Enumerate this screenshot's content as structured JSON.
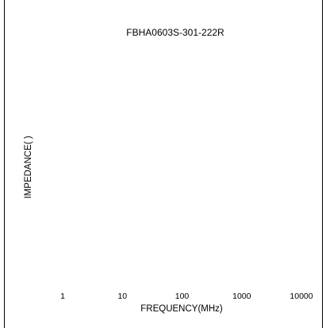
{
  "chart_data": {
    "type": "line",
    "title": "FBHA0603S-301-222R",
    "xlabel": "FREQUENCY(MHz)",
    "ylabel": "IMPEDANCE( )",
    "x_scale": "log",
    "x_ticks": [
      "1",
      "10",
      "100",
      "1000",
      "10000"
    ],
    "x_tick_values": [
      1,
      10,
      100,
      1000,
      10000
    ],
    "xlim": [
      1,
      10000
    ],
    "series": [],
    "grid": false,
    "colors": {
      "text": "#000000",
      "background": "#ffffff",
      "border": "#000000"
    }
  }
}
